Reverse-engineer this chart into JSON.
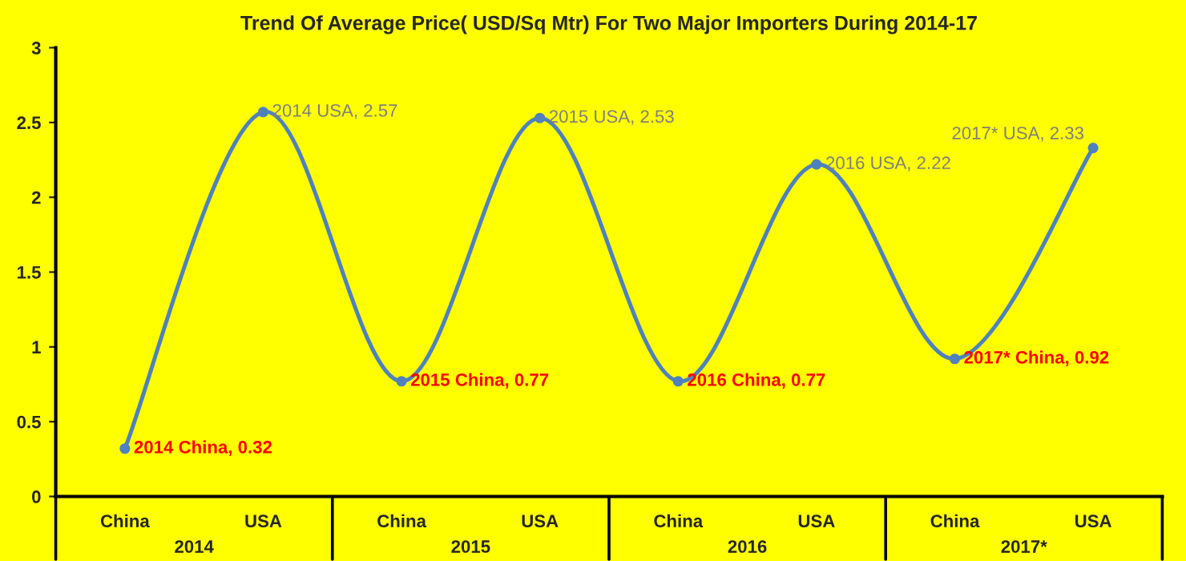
{
  "chart_data": {
    "type": "line",
    "title": "Trend Of Average Price( USD/Sq Mtr) For Two Major Importers During 2014-17",
    "categories": [
      "China",
      "USA",
      "China",
      "USA",
      "China",
      "USA",
      "China",
      "USA"
    ],
    "series": [
      {
        "color": "#4f81bd",
        "values": [
          0.32,
          2.57,
          0.77,
          2.53,
          0.77,
          2.22,
          0.92,
          2.33
        ],
        "value_labels": [
          "2014 China, 0.32",
          "2014 USA, 2.57",
          "2015 China, 0.77",
          "2015 USA, 2.53",
          "2016 China, 0.77",
          "2016 USA, 2.22",
          "2017* China, 0.92",
          "2017* USA, 2.33"
        ]
      }
    ],
    "annotations": [
      "2014",
      "2015",
      "2016",
      "2017*"
    ],
    "ylim": [
      0,
      3
    ],
    "yticks": [
      0,
      0.5,
      1,
      1.5,
      2,
      2.5,
      3
    ],
    "grid": false,
    "marker": "circle",
    "line_style": "solid"
  }
}
